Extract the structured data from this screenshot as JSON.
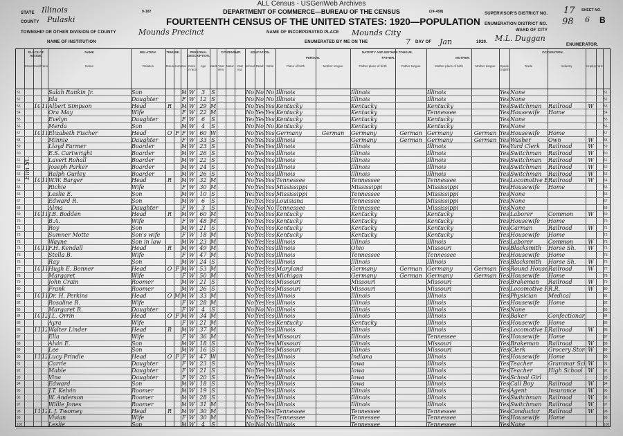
{
  "site_title": "ALL Census - USGenWeb Archives",
  "form": {
    "form_no": "9-187",
    "form_no2": "(24-458)",
    "department": "DEPARTMENT OF COMMERCE—BUREAU OF THE CENSUS",
    "title": "FOURTEENTH CENSUS OF THE UNITED STATES: 1920—POPULATION",
    "state_label": "STATE",
    "state": "Illinois",
    "county_label": "COUNTY",
    "county": "Pulaski",
    "township_label": "TOWNSHIP OR OTHER DIVISION OF COUNTY",
    "township": "Mounds Precinct",
    "institution_label": "NAME OF INSTITUTION",
    "place_label": "NAME OF INCORPORATED PLACE",
    "place": "Mounds City",
    "enumerated_label": "ENUMERATED BY ME ON THE",
    "day": "7",
    "day_of_label": "DAY OF",
    "month": "Jan",
    "year": "1920.",
    "enumerator": "M.L. Duggan",
    "enumerator_label": "ENUMERATOR.",
    "supervisor_label": "SUPERVISOR'S DISTRICT NO.",
    "supervisor": "17",
    "ed_label": "ENUMERATION DISTRICT NO.",
    "ed": "98",
    "sheet_label": "SHEET NO.",
    "sheet": "6",
    "sheet_side": "B",
    "ward_label": "WARD OF CITY",
    "street": "Elm St."
  },
  "columns": [
    "Street",
    "Dwelling",
    "Family",
    "Name",
    "Relation",
    "Tenure",
    "Home",
    "Sex",
    "Color or race",
    "Age",
    "Marital",
    "Year imm.",
    "Natur.",
    "Year nat.",
    "School",
    "Read",
    "Write",
    "Place of birth",
    "Mother tongue",
    "Father place of birth",
    "Father tongue",
    "Mother place of birth",
    "Mother tongue",
    "Speak English",
    "Trade",
    "Industry",
    "Employer",
    "Farm"
  ],
  "section_headers": {
    "person": "PERSON.",
    "father": "FATHER.",
    "mother": "MOTHER.",
    "occupation": "OCCUPATION.",
    "nativity": "NATIVITY AND MOTHER TONGUE.",
    "education": "EDUCATION.",
    "citizenship": "CITIZENSHIP.",
    "personal": "PERSONAL DESCRIPTION.",
    "relation": "RELATION.",
    "name": "NAME",
    "abode": "PLACE OF ABODE.",
    "tenure": "TENURE."
  },
  "rows": [
    [
      "51",
      "",
      "",
      "Salah Rankin Jr.",
      "Son",
      "",
      "",
      "M",
      "W",
      "3",
      "S",
      "No",
      "No",
      "No",
      "Illinois",
      "",
      "Illinois",
      "",
      "Illinois",
      "",
      "Yes",
      "None",
      "",
      ""
    ],
    [
      "52",
      "",
      "",
      "Ida",
      "Daughter",
      "",
      "",
      "F",
      "W",
      "12",
      "S",
      "No",
      "No",
      "No",
      "Illinois",
      "",
      "Illinois",
      "",
      "Illinois",
      "",
      "Yes",
      "None",
      "",
      ""
    ],
    [
      "53",
      "107",
      "113",
      "Albert Simpson",
      "Head",
      "R",
      "",
      "M",
      "W",
      "29",
      "M",
      "No",
      "Yes",
      "Yes",
      "Kentucky",
      "",
      "Kentucky",
      "",
      "Kentucky",
      "",
      "Yes",
      "Switchman",
      "Railroad",
      "W"
    ],
    [
      "54",
      "",
      "",
      "Ora May",
      "Wife",
      "",
      "",
      "F",
      "W",
      "22",
      "M",
      "No",
      "Yes",
      "Yes",
      "Kentucky",
      "",
      "Kentucky",
      "",
      "Tennessee",
      "",
      "Yes",
      "Housewife",
      "Home",
      ""
    ],
    [
      "55",
      "",
      "",
      "Evelyn",
      "Daughter",
      "",
      "",
      "F",
      "W",
      "6",
      "S",
      "Yes",
      "Yes",
      "Yes",
      "Kentucky",
      "",
      "Kentucky",
      "",
      "Kentucky",
      "",
      "Yes",
      "None",
      "",
      ""
    ],
    [
      "56",
      "",
      "",
      "Merda",
      "Son",
      "",
      "",
      "M",
      "W",
      "4",
      "S",
      "No",
      "No",
      "No",
      "Kentucky",
      "",
      "Kentucky",
      "",
      "Kentucky",
      "",
      "Yes",
      "None",
      "",
      ""
    ],
    [
      "57",
      "108",
      "114",
      "Elizabeth Fischer",
      "Head",
      "O",
      "F",
      "F",
      "W",
      "60",
      "Wd",
      "No",
      "Yes",
      "Yes",
      "Germany",
      "German",
      "Germany",
      "German",
      "Germany",
      "German",
      "Yes",
      "Housewife",
      "Home",
      ""
    ],
    [
      "58",
      "",
      "",
      "Minnie",
      "Daughter",
      "",
      "",
      "F",
      "W",
      "33",
      "S",
      "No",
      "Yes",
      "Yes",
      "Illinois",
      "",
      "Germany",
      "German",
      "Germany",
      "German",
      "Yes",
      "Washer",
      "Own",
      "W"
    ],
    [
      "59",
      "",
      "",
      "Lloyd Farmer",
      "Boarder",
      "",
      "",
      "M",
      "W",
      "23",
      "S",
      "No",
      "Yes",
      "Yes",
      "Illinois",
      "",
      "Illinois",
      "",
      "Illinois",
      "",
      "Yes",
      "Yard Clerk",
      "Railroad",
      "W"
    ],
    [
      "60",
      "",
      "",
      "E.S. Cartwright",
      "Boarder",
      "",
      "",
      "M",
      "W",
      "26",
      "S",
      "No",
      "Yes",
      "Yes",
      "Illinois",
      "",
      "Illinois",
      "",
      "Illinois",
      "",
      "Yes",
      "Switchman",
      "Railroad",
      "W"
    ],
    [
      "61",
      "",
      "",
      "Lavert Rohall",
      "Boarder",
      "",
      "",
      "M",
      "W",
      "22",
      "S",
      "No",
      "Yes",
      "Yes",
      "Illinois",
      "",
      "Illinois",
      "",
      "Illinois",
      "",
      "Yes",
      "Switchman",
      "Railroad",
      "W"
    ],
    [
      "62",
      "",
      "",
      "Joseph Parker",
      "Boarder",
      "",
      "",
      "M",
      "W",
      "24",
      "S",
      "No",
      "Yes",
      "Yes",
      "Illinois",
      "",
      "Illinois",
      "",
      "Illinois",
      "",
      "Yes",
      "Switchman",
      "Railroad",
      "W"
    ],
    [
      "63",
      "",
      "",
      "Ralph Gurley",
      "Boarder",
      "",
      "",
      "M",
      "W",
      "26",
      "S",
      "No",
      "Yes",
      "Yes",
      "Illinois",
      "",
      "Illinois",
      "",
      "Illinois",
      "",
      "Yes",
      "Switchman",
      "Railroad",
      "W"
    ],
    [
      "64",
      "104",
      "115",
      "W.W. Barger",
      "Head",
      "R",
      "",
      "M",
      "W",
      "32",
      "M",
      "No",
      "Yes",
      "Yes",
      "Tennessee",
      "",
      "Tennessee",
      "",
      "Tennessee",
      "",
      "Yes",
      "Locomotive Eng.",
      "Railroad",
      "W"
    ],
    [
      "65",
      "",
      "",
      "Richie",
      "Wife",
      "",
      "",
      "F",
      "W",
      "30",
      "M",
      "No",
      "Yes",
      "Yes",
      "Mississippi",
      "",
      "Mississippi",
      "",
      "Mississippi",
      "",
      "Yes",
      "Housewife",
      "Home",
      ""
    ],
    [
      "66",
      "",
      "",
      "Leslie E.",
      "Son",
      "",
      "",
      "M",
      "W",
      "10",
      "S",
      "Yes",
      "Yes",
      "Yes",
      "Mississippi",
      "",
      "Tennessee",
      "",
      "Mississippi",
      "",
      "Yes",
      "None",
      "",
      ""
    ],
    [
      "67",
      "",
      "",
      "Edward R.",
      "Son",
      "",
      "",
      "M",
      "W",
      "6",
      "S",
      "Yes",
      "Yes",
      "Yes",
      "Louisiana",
      "",
      "Tennessee",
      "",
      "Mississippi",
      "",
      "Yes",
      "None",
      "",
      ""
    ],
    [
      "68",
      "",
      "",
      "Alma",
      "Daughter",
      "",
      "",
      "F",
      "W",
      "3",
      "S",
      "No",
      "No",
      "No",
      "Tennessee",
      "",
      "Tennessee",
      "",
      "Mississippi",
      "",
      "Yes",
      "None",
      "",
      ""
    ],
    [
      "69",
      "105",
      "116",
      "J.B. Bodden",
      "Head",
      "R",
      "",
      "M",
      "W",
      "60",
      "M",
      "No",
      "Yes",
      "Yes",
      "Kentucky",
      "",
      "Kentucky",
      "",
      "Kentucky",
      "",
      "Yes",
      "Laborer",
      "Common",
      "W"
    ],
    [
      "70",
      "",
      "",
      "B.A.",
      "Wife",
      "",
      "",
      "F",
      "W",
      "48",
      "M",
      "No",
      "Yes",
      "Yes",
      "Kentucky",
      "",
      "Kentucky",
      "",
      "Kentucky",
      "",
      "Yes",
      "Housewife",
      "Home",
      ""
    ],
    [
      "71",
      "",
      "",
      "Roy",
      "Son",
      "",
      "",
      "M",
      "W",
      "21",
      "S",
      "No",
      "Yes",
      "Yes",
      "Kentucky",
      "",
      "Kentucky",
      "",
      "Kentucky",
      "",
      "Yes",
      "Carman",
      "Railroad",
      "W"
    ],
    [
      "72",
      "",
      "",
      "Sumner Motte",
      "Son's wife",
      "",
      "",
      "F",
      "W",
      "18",
      "M",
      "No",
      "Yes",
      "Yes",
      "Kentucky",
      "",
      "Kentucky",
      "",
      "Kentucky",
      "",
      "Yes",
      "Housewife",
      "Home",
      ""
    ],
    [
      "73",
      "",
      "",
      "Wayne",
      "Son in law",
      "",
      "",
      "M",
      "W",
      "23",
      "M",
      "No",
      "Yes",
      "Yes",
      "Illinois",
      "",
      "Illinois",
      "",
      "Illinois",
      "",
      "Yes",
      "Laborer",
      "Common",
      "W"
    ],
    [
      "74",
      "106",
      "117",
      "F.H. Kendall",
      "Head",
      "R",
      "",
      "M",
      "W",
      "49",
      "M",
      "No",
      "Yes",
      "Yes",
      "Illinois",
      "",
      "Ohio",
      "",
      "Missouri",
      "",
      "Yes",
      "Blacksmith",
      "Horse Sh.",
      "W"
    ],
    [
      "75",
      "",
      "",
      "Stella B.",
      "Wife",
      "",
      "",
      "F",
      "W",
      "47",
      "M",
      "No",
      "Yes",
      "Yes",
      "Illinois",
      "",
      "Tennessee",
      "",
      "Tennessee",
      "",
      "Yes",
      "Housewife",
      "Home",
      ""
    ],
    [
      "76",
      "",
      "",
      "Ray",
      "Son",
      "",
      "",
      "M",
      "W",
      "24",
      "S",
      "No",
      "Yes",
      "Yes",
      "Illinois",
      "",
      "Illinois",
      "",
      "Illinois",
      "",
      "Yes",
      "Blacksmith",
      "Horse Sh.",
      "W"
    ],
    [
      "77",
      "107",
      "118",
      "Hugh E. Bonner",
      "Head",
      "O",
      "F",
      "M",
      "W",
      "53",
      "M",
      "No",
      "Yes",
      "Yes",
      "Maryland",
      "",
      "Germany",
      "German",
      "Germany",
      "German",
      "Yes",
      "Round House",
      "Railroad",
      "W"
    ],
    [
      "78",
      "",
      "",
      "Margaret",
      "Wife",
      "",
      "",
      "F",
      "W",
      "50",
      "M",
      "No",
      "Yes",
      "Yes",
      "Michigan",
      "",
      "Germany",
      "German",
      "Germany",
      "German",
      "Yes",
      "Housewife",
      "Home",
      ""
    ],
    [
      "79",
      "",
      "",
      "John Crain",
      "Roomer",
      "",
      "",
      "M",
      "W",
      "21",
      "S",
      "No",
      "Yes",
      "Yes",
      "Missouri",
      "",
      "Missouri",
      "",
      "Missouri",
      "",
      "Yes",
      "Brakeman",
      "Railroad",
      "W"
    ],
    [
      "80",
      "",
      "",
      "Frank",
      "Roomer",
      "",
      "",
      "M",
      "W",
      "26",
      "S",
      "No",
      "Yes",
      "Yes",
      "Missouri",
      "",
      "Missouri",
      "",
      "Missouri",
      "",
      "Yes",
      "Locomotive Fireman",
      "R.R.",
      "W"
    ],
    [
      "81",
      "108",
      "119",
      "Dr. H. Perkins",
      "Head",
      "O",
      "M",
      "M",
      "W",
      "33",
      "M",
      "No",
      "Yes",
      "Yes",
      "Illinois",
      "",
      "Illinois",
      "",
      "Illinois",
      "",
      "Yes",
      "Physician",
      "Medical",
      ""
    ],
    [
      "82",
      "",
      "",
      "Rosaline R.",
      "Wife",
      "",
      "",
      "F",
      "W",
      "28",
      "M",
      "No",
      "Yes",
      "Yes",
      "Illinois",
      "",
      "Illinois",
      "",
      "Illinois",
      "",
      "Yes",
      "Housewife",
      "Home",
      ""
    ],
    [
      "83",
      "",
      "",
      "Margaret R.",
      "Daughter",
      "",
      "",
      "F",
      "W",
      "4",
      "S",
      "No",
      "No",
      "No",
      "Illinois",
      "",
      "Illinois",
      "",
      "Illinois",
      "",
      "Yes",
      "None",
      "",
      ""
    ],
    [
      "84",
      "109",
      "120",
      "J.L. Orrin",
      "Head",
      "O",
      "F",
      "M",
      "W",
      "34",
      "M",
      "No",
      "Yes",
      "Yes",
      "Illinois",
      "",
      "Illinois",
      "",
      "Illinois",
      "",
      "Yes",
      "Baker",
      "Confectionary",
      ""
    ],
    [
      "85",
      "",
      "",
      "Ayra",
      "Wife",
      "",
      "",
      "F",
      "W",
      "21",
      "M",
      "No",
      "Yes",
      "Yes",
      "Kentucky",
      "",
      "Kentucky",
      "",
      "Illinois",
      "",
      "Yes",
      "Housewife",
      "Home",
      ""
    ],
    [
      "86",
      "110",
      "121",
      "Walter Linder",
      "Head",
      "R",
      "",
      "M",
      "W",
      "37",
      "M",
      "No",
      "Yes",
      "Yes",
      "Illinois",
      "",
      "Illinois",
      "",
      "Illinois",
      "",
      "Yes",
      "Locomotive Eng.",
      "Railroad",
      "W"
    ],
    [
      "87",
      "",
      "",
      "Ella",
      "Wife",
      "",
      "",
      "F",
      "W",
      "36",
      "M",
      "No",
      "Yes",
      "Yes",
      "Missouri",
      "",
      "Illinois",
      "",
      "Tennessee",
      "",
      "Yes",
      "Housewife",
      "Home",
      ""
    ],
    [
      "88",
      "",
      "",
      "Alvin E.",
      "Son",
      "",
      "",
      "M",
      "W",
      "18",
      "S",
      "No",
      "Yes",
      "Yes",
      "Missouri",
      "",
      "Illinois",
      "",
      "Missouri",
      "",
      "Yes",
      "Brakeman",
      "Railroad",
      "W"
    ],
    [
      "89",
      "",
      "",
      "Lee",
      "Son",
      "",
      "",
      "M",
      "W",
      "16",
      "S",
      "No",
      "Yes",
      "Yes",
      "Missouri",
      "",
      "Illinois",
      "",
      "Missouri",
      "",
      "Yes",
      "Clerk",
      "Grocery Store",
      "W"
    ],
    [
      "90",
      "111",
      "122",
      "Lucy Prindle",
      "Head",
      "O",
      "F",
      "F",
      "W",
      "47",
      "Wd",
      "No",
      "Yes",
      "Yes",
      "Illinois",
      "",
      "Indiana",
      "",
      "Illinois",
      "",
      "Yes",
      "Housewife",
      "Home",
      ""
    ],
    [
      "91",
      "",
      "",
      "Carrie",
      "Daughter",
      "",
      "",
      "F",
      "W",
      "23",
      "S",
      "No",
      "Yes",
      "Yes",
      "Illinois",
      "",
      "Iowa",
      "",
      "Illinois",
      "",
      "Yes",
      "Teacher",
      "Grammar School",
      "W"
    ],
    [
      "92",
      "",
      "",
      "Mable",
      "Daughter",
      "",
      "",
      "F",
      "W",
      "21",
      "S",
      "No",
      "Yes",
      "Yes",
      "Illinois",
      "",
      "Iowa",
      "",
      "Illinois",
      "",
      "Yes",
      "Teacher",
      "High School",
      "W"
    ],
    [
      "93",
      "",
      "",
      "Vina",
      "Daughter",
      "",
      "",
      "F",
      "W",
      "20",
      "S",
      "Yes",
      "Yes",
      "Yes",
      "Illinois",
      "",
      "Iowa",
      "",
      "Illinois",
      "",
      "Yes",
      "School Girl",
      "",
      ""
    ],
    [
      "94",
      "",
      "",
      "Edward",
      "Son",
      "",
      "",
      "M",
      "W",
      "18",
      "S",
      "No",
      "Yes",
      "Yes",
      "Illinois",
      "",
      "Iowa",
      "",
      "Illinois",
      "",
      "Yes",
      "Call Boy",
      "Railroad",
      "W"
    ],
    [
      "95",
      "",
      "",
      "J.T. Kelvin",
      "Roomer",
      "",
      "",
      "M",
      "W",
      "19",
      "S",
      "No",
      "Yes",
      "Yes",
      "Illinois",
      "",
      "Illinois",
      "",
      "Illinois",
      "",
      "Yes",
      "Agent",
      "Insurance",
      "W"
    ],
    [
      "96",
      "",
      "",
      "W. Anderson",
      "Roomer",
      "",
      "",
      "M",
      "W",
      "28",
      "S",
      "No",
      "Yes",
      "Yes",
      "Illinois",
      "",
      "Illinois",
      "",
      "Illinois",
      "",
      "Yes",
      "Switchman",
      "Railroad",
      "W"
    ],
    [
      "97",
      "",
      "",
      "Willie Jones",
      "Roomer",
      "",
      "",
      "M",
      "W",
      "31",
      "M",
      "No",
      "Yes",
      "Yes",
      "Illinois",
      "",
      "Illinois",
      "",
      "Illinois",
      "",
      "Yes",
      "Switchman",
      "Railroad",
      "W"
    ],
    [
      "98",
      "112",
      "123",
      "L.J. Twomey",
      "Head",
      "R",
      "",
      "M",
      "W",
      "30",
      "M",
      "No",
      "Yes",
      "Yes",
      "Tennessee",
      "",
      "Tennessee",
      "",
      "Tennessee",
      "",
      "Yes",
      "Conductor",
      "Railroad",
      "W"
    ],
    [
      "99",
      "",
      "",
      "Vivian",
      "Wife",
      "",
      "",
      "F",
      "W",
      "30",
      "M",
      "No",
      "Yes",
      "Yes",
      "Tennessee",
      "",
      "Tennessee",
      "",
      "Tennessee",
      "",
      "Yes",
      "Housewife",
      "Home",
      ""
    ],
    [
      "100",
      "",
      "",
      "Leslie",
      "Son",
      "",
      "",
      "M",
      "W",
      "4",
      "S",
      "No",
      "No",
      "No",
      "Illinois",
      "",
      "Tennessee",
      "",
      "Tennessee",
      "",
      "Yes",
      "None",
      "",
      ""
    ]
  ]
}
